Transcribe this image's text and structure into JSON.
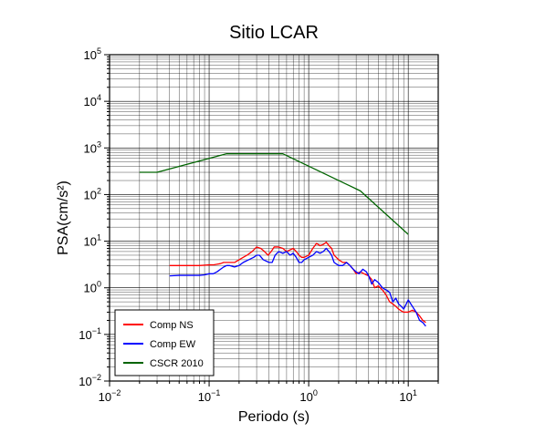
{
  "chart_data": {
    "type": "line",
    "title": "Sitio LCAR",
    "xlabel": "Periodo (s)",
    "ylabel": "PSA(cm/s²)",
    "xscale": "log",
    "yscale": "log",
    "xlim": [
      0.01,
      20
    ],
    "ylim": [
      0.01,
      100000
    ],
    "x_ticks": [
      {
        "value": 0.01,
        "base": "10",
        "exp": "−2"
      },
      {
        "value": 0.1,
        "base": "10",
        "exp": "−1"
      },
      {
        "value": 1,
        "base": "10",
        "exp": "0"
      },
      {
        "value": 10,
        "base": "10",
        "exp": "1"
      }
    ],
    "y_ticks": [
      {
        "value": 0.01,
        "base": "10",
        "exp": "−2"
      },
      {
        "value": 0.1,
        "base": "10",
        "exp": "−1"
      },
      {
        "value": 1,
        "base": "10",
        "exp": "0"
      },
      {
        "value": 10,
        "base": "10",
        "exp": "1"
      },
      {
        "value": 100,
        "base": "10",
        "exp": "2"
      },
      {
        "value": 1000,
        "base": "10",
        "exp": "3"
      },
      {
        "value": 10000,
        "base": "10",
        "exp": "4"
      },
      {
        "value": 100000,
        "base": "10",
        "exp": "5"
      }
    ],
    "grid": true,
    "legend_position": "bottom-left",
    "series": [
      {
        "name": "Comp NS",
        "color": "#ff0000",
        "points": [
          [
            0.04,
            3.0
          ],
          [
            0.05,
            3.0
          ],
          [
            0.06,
            3.0
          ],
          [
            0.07,
            3.0
          ],
          [
            0.08,
            3.0
          ],
          [
            0.09,
            3.05
          ],
          [
            0.1,
            3.1
          ],
          [
            0.11,
            3.1
          ],
          [
            0.12,
            3.2
          ],
          [
            0.13,
            3.3
          ],
          [
            0.14,
            3.5
          ],
          [
            0.16,
            3.5
          ],
          [
            0.18,
            3.5
          ],
          [
            0.2,
            4.0
          ],
          [
            0.22,
            4.5
          ],
          [
            0.24,
            5.0
          ],
          [
            0.27,
            6.0
          ],
          [
            0.3,
            7.5
          ],
          [
            0.33,
            7.0
          ],
          [
            0.36,
            6.0
          ],
          [
            0.39,
            5.0
          ],
          [
            0.42,
            6.0
          ],
          [
            0.45,
            7.5
          ],
          [
            0.5,
            7.5
          ],
          [
            0.55,
            7.0
          ],
          [
            0.6,
            6.0
          ],
          [
            0.65,
            6.5
          ],
          [
            0.7,
            7.0
          ],
          [
            0.75,
            6.0
          ],
          [
            0.8,
            5.0
          ],
          [
            0.85,
            4.5
          ],
          [
            0.9,
            4.5
          ],
          [
            1.0,
            5.0
          ],
          [
            1.1,
            7.0
          ],
          [
            1.2,
            9.0
          ],
          [
            1.3,
            8.0
          ],
          [
            1.4,
            8.5
          ],
          [
            1.5,
            9.5
          ],
          [
            1.6,
            8.0
          ],
          [
            1.7,
            7.0
          ],
          [
            1.8,
            5.0
          ],
          [
            2.0,
            4.0
          ],
          [
            2.2,
            3.5
          ],
          [
            2.4,
            3.5
          ],
          [
            2.6,
            3.0
          ],
          [
            2.8,
            2.5
          ],
          [
            3.0,
            2.0
          ],
          [
            3.3,
            2.2
          ],
          [
            3.6,
            2.0
          ],
          [
            4.0,
            1.8
          ],
          [
            4.3,
            1.5
          ],
          [
            4.6,
            1.0
          ],
          [
            5.0,
            1.1
          ],
          [
            5.5,
            0.9
          ],
          [
            6.0,
            0.7
          ],
          [
            6.5,
            0.5
          ],
          [
            7.0,
            0.45
          ],
          [
            7.5,
            0.4
          ],
          [
            8.0,
            0.35
          ],
          [
            8.5,
            0.32
          ],
          [
            9.0,
            0.3
          ],
          [
            10.0,
            0.3
          ],
          [
            11.0,
            0.33
          ],
          [
            12.0,
            0.3
          ],
          [
            13.0,
            0.25
          ],
          [
            14.0,
            0.2
          ],
          [
            15.0,
            0.18
          ]
        ]
      },
      {
        "name": "Comp EW",
        "color": "#0000ff",
        "points": [
          [
            0.04,
            1.8
          ],
          [
            0.05,
            1.85
          ],
          [
            0.06,
            1.85
          ],
          [
            0.07,
            1.85
          ],
          [
            0.08,
            1.85
          ],
          [
            0.09,
            1.9
          ],
          [
            0.1,
            2.0
          ],
          [
            0.11,
            2.0
          ],
          [
            0.12,
            2.2
          ],
          [
            0.13,
            2.5
          ],
          [
            0.14,
            2.8
          ],
          [
            0.15,
            3.0
          ],
          [
            0.16,
            3.0
          ],
          [
            0.18,
            2.8
          ],
          [
            0.2,
            3.0
          ],
          [
            0.22,
            3.5
          ],
          [
            0.25,
            4.0
          ],
          [
            0.28,
            4.5
          ],
          [
            0.3,
            5.0
          ],
          [
            0.32,
            5.0
          ],
          [
            0.35,
            4.0
          ],
          [
            0.4,
            3.5
          ],
          [
            0.43,
            3.5
          ],
          [
            0.46,
            5.0
          ],
          [
            0.5,
            6.0
          ],
          [
            0.55,
            5.5
          ],
          [
            0.6,
            6.0
          ],
          [
            0.65,
            5.0
          ],
          [
            0.7,
            5.5
          ],
          [
            0.75,
            4.5
          ],
          [
            0.8,
            3.5
          ],
          [
            0.85,
            3.5
          ],
          [
            0.9,
            4.0
          ],
          [
            1.0,
            4.5
          ],
          [
            1.1,
            5.0
          ],
          [
            1.2,
            6.0
          ],
          [
            1.3,
            5.5
          ],
          [
            1.4,
            6.0
          ],
          [
            1.5,
            7.0
          ],
          [
            1.6,
            6.0
          ],
          [
            1.7,
            5.0
          ],
          [
            1.8,
            3.5
          ],
          [
            2.0,
            3.0
          ],
          [
            2.2,
            3.0
          ],
          [
            2.4,
            3.5
          ],
          [
            2.6,
            3.0
          ],
          [
            2.8,
            2.5
          ],
          [
            3.0,
            2.2
          ],
          [
            3.2,
            2.0
          ],
          [
            3.5,
            2.5
          ],
          [
            3.8,
            2.2
          ],
          [
            4.0,
            1.8
          ],
          [
            4.3,
            1.2
          ],
          [
            4.6,
            1.5
          ],
          [
            5.0,
            1.3
          ],
          [
            5.5,
            1.0
          ],
          [
            6.0,
            0.9
          ],
          [
            6.5,
            0.8
          ],
          [
            7.0,
            0.5
          ],
          [
            7.5,
            0.6
          ],
          [
            8.0,
            0.45
          ],
          [
            8.5,
            0.4
          ],
          [
            9.0,
            0.35
          ],
          [
            10.0,
            0.55
          ],
          [
            11.0,
            0.4
          ],
          [
            12.0,
            0.3
          ],
          [
            13.0,
            0.2
          ],
          [
            14.0,
            0.18
          ],
          [
            15.0,
            0.15
          ]
        ]
      },
      {
        "name": "CSCR 2010",
        "color": "#006400",
        "points": [
          [
            0.02,
            300
          ],
          [
            0.03,
            300
          ],
          [
            0.15,
            750
          ],
          [
            0.55,
            750
          ],
          [
            3.3,
            120
          ],
          [
            10.0,
            14
          ]
        ]
      }
    ]
  }
}
